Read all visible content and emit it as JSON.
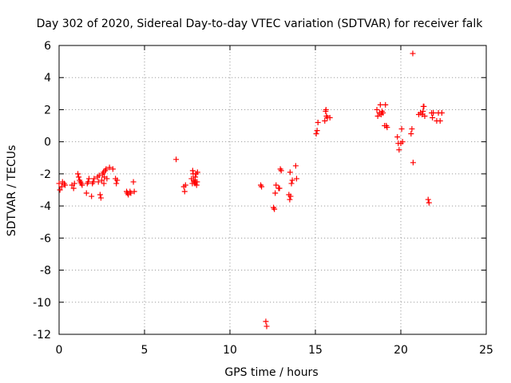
{
  "chart_data": {
    "type": "scatter",
    "title": "Day 302 of 2020, Sidereal Day-to-day VTEC variation (SDTVAR) for receiver falk",
    "xlabel": "GPS time / hours",
    "ylabel": "SDTVAR / TECUs",
    "xlim": [
      0,
      25
    ],
    "ylim": [
      -12,
      6
    ],
    "xticks": [
      0,
      5,
      10,
      15,
      20,
      25
    ],
    "xtick_labels": [
      "0",
      "5",
      "10",
      "15",
      "20",
      "25"
    ],
    "yticks": [
      -12,
      -10,
      -8,
      -6,
      -4,
      -2,
      0,
      2,
      4,
      6
    ],
    "ytick_labels": [
      "-12",
      "-10",
      "-8",
      "-6",
      "-4",
      "-2",
      "0",
      "2",
      "4",
      "6"
    ],
    "grid": true,
    "marker": "plus",
    "marker_color": "#ff0000",
    "series": [
      {
        "name": "SDTVAR",
        "points": [
          [
            0.0,
            -2.6
          ],
          [
            0.05,
            -3.0
          ],
          [
            0.15,
            -2.8
          ],
          [
            0.2,
            -2.5
          ],
          [
            0.3,
            -2.6
          ],
          [
            0.35,
            -2.7
          ],
          [
            0.75,
            -2.7
          ],
          [
            0.85,
            -2.9
          ],
          [
            0.9,
            -2.6
          ],
          [
            1.1,
            -2.0
          ],
          [
            1.15,
            -2.2
          ],
          [
            1.2,
            -2.4
          ],
          [
            1.25,
            -2.5
          ],
          [
            1.3,
            -2.6
          ],
          [
            1.35,
            -2.7
          ],
          [
            1.6,
            -3.2
          ],
          [
            1.65,
            -2.6
          ],
          [
            1.7,
            -2.5
          ],
          [
            1.75,
            -2.3
          ],
          [
            1.9,
            -3.4
          ],
          [
            1.95,
            -2.6
          ],
          [
            2.0,
            -2.5
          ],
          [
            2.05,
            -2.3
          ],
          [
            2.25,
            -2.2
          ],
          [
            2.3,
            -2.5
          ],
          [
            2.35,
            -2.1
          ],
          [
            2.4,
            -3.3
          ],
          [
            2.45,
            -3.5
          ],
          [
            2.5,
            -2.4
          ],
          [
            2.55,
            -2.0
          ],
          [
            2.6,
            -1.9
          ],
          [
            2.62,
            -2.6
          ],
          [
            2.65,
            -2.2
          ],
          [
            2.7,
            -1.8
          ],
          [
            2.75,
            -1.7
          ],
          [
            2.8,
            -2.3
          ],
          [
            2.95,
            -1.6
          ],
          [
            3.15,
            -1.7
          ],
          [
            3.3,
            -2.3
          ],
          [
            3.35,
            -2.6
          ],
          [
            3.4,
            -2.4
          ],
          [
            3.95,
            -3.1
          ],
          [
            4.0,
            -3.2
          ],
          [
            4.05,
            -3.3
          ],
          [
            4.15,
            -3.1
          ],
          [
            4.2,
            -3.2
          ],
          [
            4.35,
            -2.5
          ],
          [
            4.4,
            -3.1
          ],
          [
            6.85,
            -1.1
          ],
          [
            7.3,
            -2.8
          ],
          [
            7.35,
            -3.1
          ],
          [
            7.4,
            -2.7
          ],
          [
            7.75,
            -2.3
          ],
          [
            7.8,
            -2.6
          ],
          [
            7.82,
            -1.8
          ],
          [
            7.85,
            -2.0
          ],
          [
            7.88,
            -2.4
          ],
          [
            7.9,
            -2.5
          ],
          [
            7.95,
            -2.6
          ],
          [
            7.97,
            -2.2
          ],
          [
            8.0,
            -2.5
          ],
          [
            8.02,
            -2.0
          ],
          [
            8.05,
            -2.7
          ],
          [
            8.08,
            -2.5
          ],
          [
            8.1,
            -1.9
          ],
          [
            11.8,
            -2.7
          ],
          [
            11.85,
            -2.8
          ],
          [
            12.1,
            -11.2
          ],
          [
            12.15,
            -11.5
          ],
          [
            12.55,
            -4.1
          ],
          [
            12.6,
            -4.2
          ],
          [
            12.65,
            -3.2
          ],
          [
            12.7,
            -2.7
          ],
          [
            12.85,
            -2.9
          ],
          [
            12.9,
            -2.9
          ],
          [
            12.95,
            -1.7
          ],
          [
            13.0,
            -1.8
          ],
          [
            13.45,
            -3.3
          ],
          [
            13.5,
            -3.6
          ],
          [
            13.52,
            -1.9
          ],
          [
            13.55,
            -3.4
          ],
          [
            13.6,
            -2.6
          ],
          [
            13.65,
            -2.4
          ],
          [
            13.85,
            -1.5
          ],
          [
            13.9,
            -2.3
          ],
          [
            15.05,
            0.5
          ],
          [
            15.1,
            0.7
          ],
          [
            15.15,
            1.2
          ],
          [
            15.55,
            1.3
          ],
          [
            15.6,
            1.9
          ],
          [
            15.62,
            2.0
          ],
          [
            15.65,
            1.6
          ],
          [
            15.7,
            1.5
          ],
          [
            15.85,
            1.5
          ],
          [
            18.6,
            2.0
          ],
          [
            18.65,
            1.6
          ],
          [
            18.75,
            1.8
          ],
          [
            18.8,
            2.3
          ],
          [
            18.85,
            1.7
          ],
          [
            18.9,
            1.9
          ],
          [
            18.95,
            1.8
          ],
          [
            19.05,
            1.0
          ],
          [
            19.1,
            2.3
          ],
          [
            19.15,
            1.0
          ],
          [
            19.2,
            0.9
          ],
          [
            19.8,
            0.3
          ],
          [
            19.85,
            -0.1
          ],
          [
            19.9,
            -0.5
          ],
          [
            20.0,
            -0.1
          ],
          [
            20.05,
            0.8
          ],
          [
            20.1,
            0.0
          ],
          [
            20.6,
            0.5
          ],
          [
            20.65,
            0.8
          ],
          [
            20.7,
            5.5
          ],
          [
            20.72,
            -1.3
          ],
          [
            21.05,
            1.7
          ],
          [
            21.15,
            1.8
          ],
          [
            21.25,
            1.7
          ],
          [
            21.3,
            1.9
          ],
          [
            21.32,
            2.2
          ],
          [
            21.35,
            2.2
          ],
          [
            21.4,
            1.6
          ],
          [
            21.6,
            -3.6
          ],
          [
            21.65,
            -3.8
          ],
          [
            21.8,
            1.8
          ],
          [
            21.85,
            1.5
          ],
          [
            21.9,
            1.8
          ],
          [
            22.1,
            1.3
          ],
          [
            22.2,
            1.8
          ],
          [
            22.3,
            1.3
          ],
          [
            22.4,
            1.8
          ]
        ]
      }
    ]
  }
}
